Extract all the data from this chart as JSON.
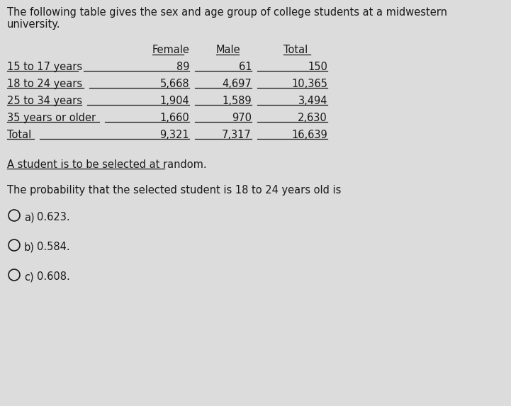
{
  "title_line1": "The following table gives the sex and age group of college students at a midwestern",
  "title_line2": "university.",
  "bg_color": "#dcdcdc",
  "table_header_labels": [
    "Female",
    "Male",
    "Total"
  ],
  "table_rows": [
    [
      "15 to 17 years",
      "89",
      "61",
      "150"
    ],
    [
      "18 to 24 years",
      "5,668",
      "4,697",
      "10,365"
    ],
    [
      "25 to 34 years",
      "1,904",
      "1,589",
      "3,494"
    ],
    [
      "35 years or older",
      "1,660",
      "970",
      "2,630"
    ],
    [
      "Total",
      "9,321",
      "7,317",
      "16,639"
    ]
  ],
  "subtext": "A student is to be selected at random.",
  "question": "The probability that the selected student is 18 to 24 years old is",
  "choices": [
    {
      "label": "a)",
      "value": "0.623."
    },
    {
      "label": "b)",
      "value": "0.584."
    },
    {
      "label": "c)",
      "value": "0.608."
    }
  ],
  "text_color": "#1a1a1a",
  "font_size": 10.5
}
